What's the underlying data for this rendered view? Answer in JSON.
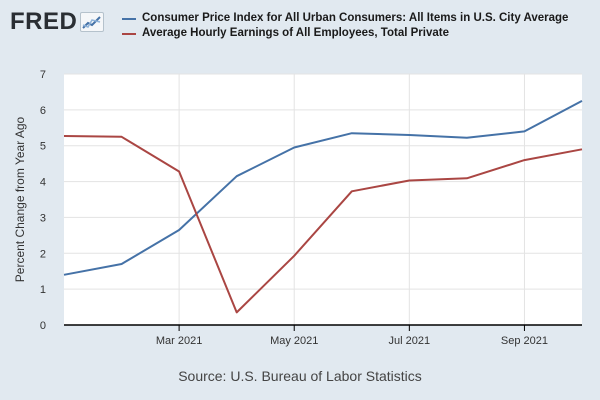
{
  "logo": {
    "text": "FRED"
  },
  "chart_data": {
    "type": "line",
    "x": [
      "2021-01",
      "2021-02",
      "2021-03",
      "2021-04",
      "2021-05",
      "2021-06",
      "2021-07",
      "2021-08",
      "2021-09",
      "2021-10"
    ],
    "xtick_labels": [
      "Mar 2021",
      "May 2021",
      "Jul 2021",
      "Sep 2021"
    ],
    "xticks": [
      "2021-03",
      "2021-05",
      "2021-07",
      "2021-09"
    ],
    "ylabel": "Percent Change from Year Ago",
    "ylim": [
      0,
      7
    ],
    "yticks": [
      0,
      1,
      2,
      3,
      4,
      5,
      6,
      7
    ],
    "grid": true,
    "legend_position": "top",
    "series": [
      {
        "name": "Consumer Price Index for All Urban Consumers: All Items in U.S. City Average",
        "color": "#4572a7",
        "values": [
          1.4,
          1.7,
          2.65,
          4.15,
          4.95,
          5.35,
          5.3,
          5.22,
          5.4,
          6.25
        ]
      },
      {
        "name": "Average Hourly Earnings of All Employees, Total Private",
        "color": "#aa4643",
        "values": [
          5.27,
          5.25,
          4.28,
          0.35,
          1.93,
          3.73,
          4.03,
          4.09,
          4.6,
          4.9
        ]
      }
    ]
  },
  "source": "Source: U.S. Bureau of Labor Statistics"
}
